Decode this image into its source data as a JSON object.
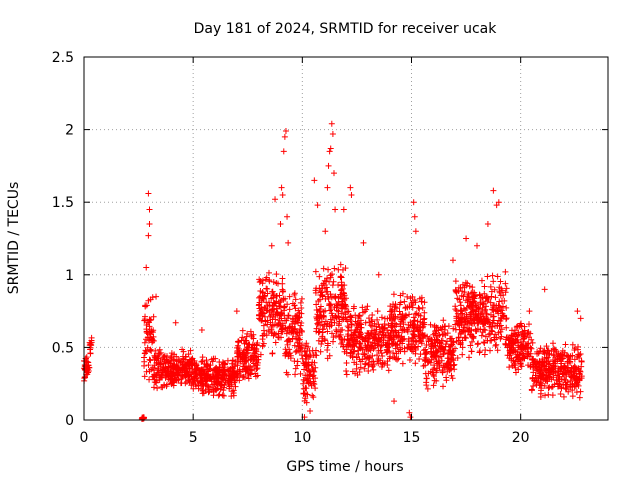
{
  "chart_data": {
    "type": "scatter",
    "title": "Day 181 of 2024, SRMTID for receiver ucak",
    "xlabel": "GPS time / hours",
    "ylabel": "SRMTID / TECUs",
    "xlim": [
      0,
      24
    ],
    "ylim": [
      0,
      2.5
    ],
    "x_ticks": [
      0,
      5,
      10,
      15,
      20
    ],
    "x_tick_labels": [
      "0",
      "5",
      "10",
      "15",
      "20"
    ],
    "y_ticks": [
      0,
      0.5,
      1,
      1.5,
      2,
      2.5
    ],
    "y_tick_labels": [
      "0",
      "0.5",
      "1",
      "1.5",
      "2",
      "2.5"
    ],
    "grid": true,
    "marker": "+",
    "series": [
      {
        "name": "SRMTID",
        "color": "#ff0000",
        "segments": [
          [
            0.0,
            0.25,
            0.25,
            0.45
          ],
          [
            0.25,
            0.35,
            0.4,
            0.6
          ],
          [
            2.65,
            2.75,
            0.0,
            0.02
          ],
          [
            2.75,
            3.2,
            0.25,
            0.9
          ],
          [
            3.2,
            5.0,
            0.2,
            0.5
          ],
          [
            5.0,
            7.0,
            0.15,
            0.45
          ],
          [
            7.0,
            8.0,
            0.25,
            0.65
          ],
          [
            8.0,
            9.2,
            0.4,
            1.05
          ],
          [
            9.2,
            10.0,
            0.3,
            0.9
          ],
          [
            10.0,
            10.6,
            0.05,
            0.6
          ],
          [
            10.6,
            12.0,
            0.4,
            1.1
          ],
          [
            12.0,
            14.0,
            0.3,
            0.8
          ],
          [
            14.0,
            15.6,
            0.35,
            0.9
          ],
          [
            15.6,
            17.0,
            0.2,
            0.7
          ],
          [
            17.0,
            19.4,
            0.4,
            1.0
          ],
          [
            19.4,
            20.5,
            0.3,
            0.7
          ],
          [
            20.5,
            22.8,
            0.15,
            0.55
          ]
        ],
        "peaks": [
          [
            2.95,
            1.56
          ],
          [
            3.0,
            1.45
          ],
          [
            3.0,
            1.35
          ],
          [
            2.95,
            1.27
          ],
          [
            2.85,
            1.05
          ],
          [
            3.3,
            0.85
          ],
          [
            4.2,
            0.67
          ],
          [
            5.4,
            0.62
          ],
          [
            7.0,
            0.75
          ],
          [
            8.6,
            1.2
          ],
          [
            8.75,
            1.52
          ],
          [
            9.0,
            1.35
          ],
          [
            9.05,
            1.6
          ],
          [
            9.1,
            1.55
          ],
          [
            9.15,
            1.85
          ],
          [
            9.2,
            1.95
          ],
          [
            9.25,
            1.99
          ],
          [
            9.3,
            1.4
          ],
          [
            9.35,
            1.22
          ],
          [
            10.1,
            0.02
          ],
          [
            10.2,
            0.12
          ],
          [
            10.3,
            0.25
          ],
          [
            10.55,
            1.65
          ],
          [
            10.7,
            1.48
          ],
          [
            11.05,
            1.3
          ],
          [
            11.15,
            1.6
          ],
          [
            11.2,
            1.75
          ],
          [
            11.25,
            1.85
          ],
          [
            11.3,
            1.87
          ],
          [
            11.35,
            2.04
          ],
          [
            11.4,
            1.97
          ],
          [
            11.45,
            1.7
          ],
          [
            11.5,
            1.45
          ],
          [
            11.9,
            1.45
          ],
          [
            12.2,
            1.6
          ],
          [
            12.25,
            1.55
          ],
          [
            12.8,
            1.22
          ],
          [
            13.5,
            1.0
          ],
          [
            14.2,
            0.13
          ],
          [
            14.9,
            0.05
          ],
          [
            14.95,
            0.02
          ],
          [
            15.1,
            1.5
          ],
          [
            15.15,
            1.4
          ],
          [
            15.2,
            1.3
          ],
          [
            16.9,
            1.1
          ],
          [
            17.5,
            1.25
          ],
          [
            18.0,
            1.2
          ],
          [
            18.5,
            1.35
          ],
          [
            18.75,
            1.58
          ],
          [
            18.9,
            1.48
          ],
          [
            19.0,
            1.5
          ],
          [
            19.3,
            1.02
          ],
          [
            20.4,
            0.75
          ],
          [
            21.1,
            0.9
          ],
          [
            22.6,
            0.75
          ],
          [
            22.75,
            0.7
          ]
        ]
      }
    ]
  }
}
